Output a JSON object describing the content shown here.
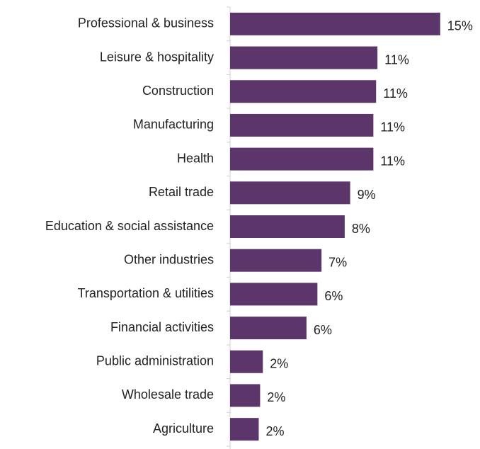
{
  "chart_data": {
    "type": "bar",
    "orientation": "horizontal",
    "categories": [
      "Professional & business",
      "Leisure & hospitality",
      "Construction",
      "Manufacturing",
      "Health",
      "Retail trade",
      "Education & social assistance",
      "Other industries",
      "Transportation & utilities",
      "Financial activities",
      "Public administration",
      "Wholesale trade",
      "Agriculture"
    ],
    "values": [
      15.4,
      10.8,
      10.7,
      10.5,
      10.5,
      8.8,
      8.4,
      6.7,
      6.4,
      5.6,
      2.4,
      2.2,
      2.1
    ],
    "value_labels": [
      "15%",
      "11%",
      "11%",
      "11%",
      "11%",
      "9%",
      "8%",
      "7%",
      "6%",
      "6%",
      "2%",
      "2%",
      "2%"
    ],
    "color": "#5c356a",
    "xlim": [
      0,
      16.5
    ]
  }
}
